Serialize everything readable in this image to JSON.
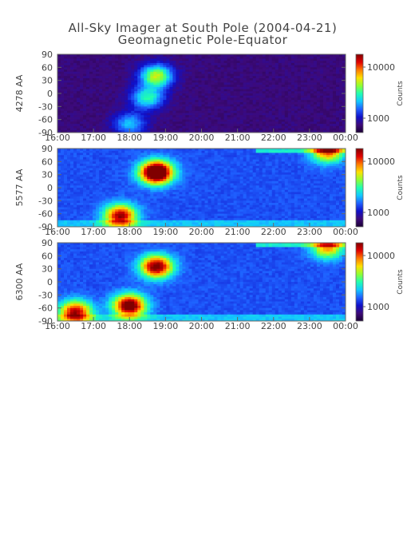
{
  "title": "All-Sky Imager at South Pole (2004-04-21)",
  "subtitle": "Geomagnetic Pole-Equator",
  "colorbar_label": "Counts",
  "colormap": [
    "#1a0033",
    "#3d0a7a",
    "#1010c8",
    "#1f60ff",
    "#12c8ff",
    "#20ffb0",
    "#90ff30",
    "#ffe000",
    "#ff7a00",
    "#e00000",
    "#800000"
  ],
  "chart_data": [
    {
      "type": "heatmap",
      "ylabel": "4278 AA",
      "x_ticks": [
        "16:00",
        "17:00",
        "18:00",
        "19:00",
        "20:00",
        "21:00",
        "22:00",
        "23:00",
        "00:00"
      ],
      "y_ticks": [
        90,
        60,
        30,
        0,
        -30,
        -60,
        -90
      ],
      "ylim": [
        -90,
        90
      ],
      "colorbar_ticks": [
        10000,
        1000
      ],
      "features": [
        {
          "time": "18:45",
          "lat": 40,
          "intensity": 0.55
        },
        {
          "time": "18:30",
          "lat": -10,
          "intensity": 0.4
        },
        {
          "time": "18:00",
          "lat": -70,
          "intensity": 0.3
        }
      ]
    },
    {
      "type": "heatmap",
      "ylabel": "5577 AA",
      "x_ticks": [
        "16:00",
        "17:00",
        "18:00",
        "19:00",
        "20:00",
        "21:00",
        "22:00",
        "23:00",
        "00:00"
      ],
      "y_ticks": [
        90,
        60,
        30,
        0,
        -30,
        -60,
        -90
      ],
      "ylim": [
        -90,
        90
      ],
      "colorbar_ticks": [
        10000,
        1000
      ],
      "features": [
        {
          "time": "18:45",
          "lat": 35,
          "intensity": 1.0
        },
        {
          "time": "17:45",
          "lat": -65,
          "intensity": 0.7
        },
        {
          "time": "23:30",
          "lat": 85,
          "intensity": 0.6
        }
      ]
    },
    {
      "type": "heatmap",
      "ylabel": "6300 AA",
      "x_ticks": [
        "16:00",
        "17:00",
        "18:00",
        "19:00",
        "20:00",
        "21:00",
        "22:00",
        "23:00",
        "00:00"
      ],
      "y_ticks": [
        90,
        60,
        30,
        0,
        -30,
        -60,
        -90
      ],
      "ylim": [
        -90,
        90
      ],
      "colorbar_ticks": [
        10000,
        1000
      ],
      "features": [
        {
          "time": "18:45",
          "lat": 35,
          "intensity": 0.75
        },
        {
          "time": "18:00",
          "lat": -55,
          "intensity": 0.8
        },
        {
          "time": "16:30",
          "lat": -70,
          "intensity": 0.7
        },
        {
          "time": "23:30",
          "lat": 80,
          "intensity": 0.5
        }
      ]
    }
  ]
}
